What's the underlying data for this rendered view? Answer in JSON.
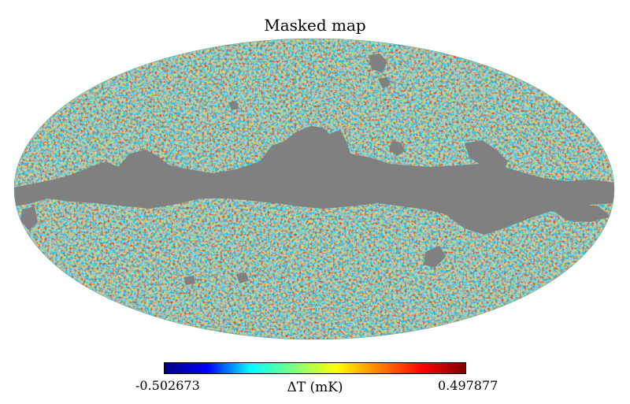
{
  "title": "Masked map",
  "colorbar": {
    "min_label": "-0.502673",
    "max_label": "0.497877",
    "quantity_label": "ΔT (mK)",
    "colormap": "jet",
    "stops": [
      "#00007f",
      "#0000ff",
      "#00ffff",
      "#7fff7f",
      "#ffff00",
      "#ff7f00",
      "#ff0000",
      "#7f0000"
    ]
  },
  "map": {
    "projection": "Mollweide",
    "mask_color": "#808080",
    "background_color": "#ffffff"
  }
}
